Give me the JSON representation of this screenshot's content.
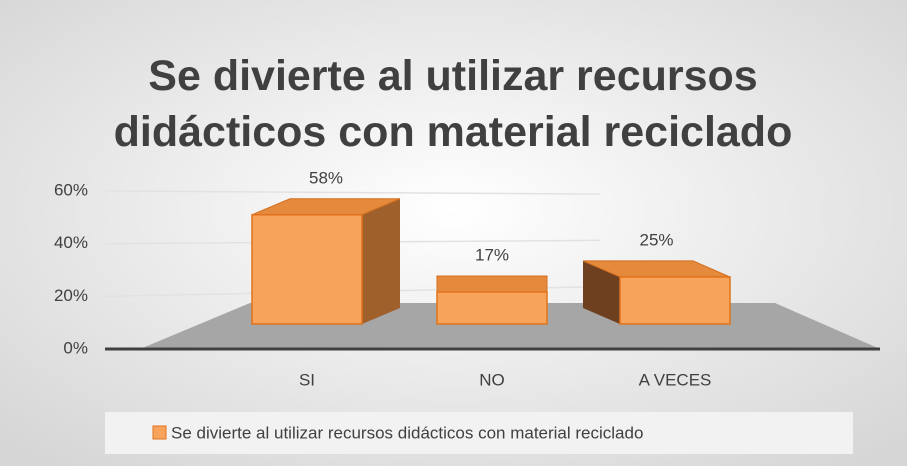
{
  "chart_data": {
    "type": "bar3d",
    "title": "Se divierte al utilizar recursos didácticos con material reciclado",
    "categories": [
      "SI",
      "NO",
      "A VECES"
    ],
    "series": [
      {
        "name": "Se divierte al utilizar recursos didácticos con material reciclado",
        "color": "#f7a35c",
        "values": [
          58,
          17,
          25
        ],
        "value_labels": [
          "58%",
          "17%",
          "25%"
        ]
      }
    ],
    "ylim": [
      0,
      60
    ],
    "yticks": [
      {
        "value": 0,
        "label": "0%"
      },
      {
        "value": 20,
        "label": "20%"
      },
      {
        "value": 40,
        "label": "40%"
      },
      {
        "value": 60,
        "label": "60%"
      }
    ],
    "grid": true,
    "legend": "bottom"
  }
}
